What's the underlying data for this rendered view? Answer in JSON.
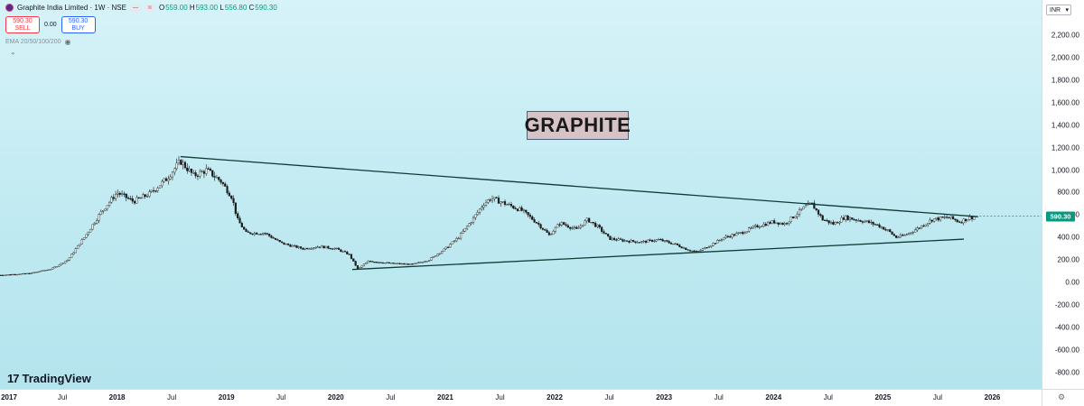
{
  "legend": {
    "title": "Graphite India Limited · 1W · NSE",
    "ohlc": [
      {
        "k": "O",
        "v": "559.00"
      },
      {
        "k": "H",
        "v": "593.00"
      },
      {
        "k": "L",
        "v": "556.80"
      },
      {
        "k": "C",
        "v": "590.30"
      }
    ],
    "pill1": "—",
    "pill2": "≋"
  },
  "trade": {
    "sell_price": "590.30",
    "sell_label": "SELL",
    "spread": "0.00",
    "buy_price": "590.30",
    "buy_label": "BUY"
  },
  "indicator": {
    "label": "EMA 20/50/100/200"
  },
  "currency": "INR",
  "last_price_label": "590.30",
  "annotation": "GRAPHITE",
  "brand": "TradingView",
  "colors": {
    "up": "#089981",
    "down": "#f23645",
    "accent": "#2962ff",
    "trendline": "#0d3b36"
  },
  "chart_data": {
    "type": "candlestick",
    "title": "Graphite India Limited · 1W · NSE",
    "currency": "INR",
    "ylim": [
      -900,
      2450
    ],
    "y_ticks": [
      "2,200.00",
      "2,000.00",
      "1,800.00",
      "1,600.00",
      "1,400.00",
      "1,200.00",
      "1,000.00",
      "800.00",
      "600.00",
      "400.00",
      "200.00",
      "0.00",
      "-200.00",
      "-400.00",
      "-600.00",
      "-800.00"
    ],
    "y_tick_values": [
      2200,
      2000,
      1800,
      1600,
      1400,
      1200,
      1000,
      800,
      600,
      400,
      200,
      0,
      -200,
      -400,
      -600,
      -800
    ],
    "x_ticks": [
      {
        "label": "2017",
        "year": true,
        "t": 2017.0
      },
      {
        "label": "Jul",
        "year": false,
        "t": 2017.5
      },
      {
        "label": "2018",
        "year": true,
        "t": 2018.0
      },
      {
        "label": "Jul",
        "year": false,
        "t": 2018.5
      },
      {
        "label": "2019",
        "year": true,
        "t": 2019.0
      },
      {
        "label": "Jul",
        "year": false,
        "t": 2019.5
      },
      {
        "label": "2020",
        "year": true,
        "t": 2020.0
      },
      {
        "label": "Jul",
        "year": false,
        "t": 2020.5
      },
      {
        "label": "2021",
        "year": true,
        "t": 2021.0
      },
      {
        "label": "Jul",
        "year": false,
        "t": 2021.5
      },
      {
        "label": "2022",
        "year": true,
        "t": 2022.0
      },
      {
        "label": "Jul",
        "year": false,
        "t": 2022.5
      },
      {
        "label": "2023",
        "year": true,
        "t": 2023.0
      },
      {
        "label": "Jul",
        "year": false,
        "t": 2023.5
      },
      {
        "label": "2024",
        "year": true,
        "t": 2024.0
      },
      {
        "label": "Jul",
        "year": false,
        "t": 2024.5
      },
      {
        "label": "2025",
        "year": true,
        "t": 2025.0
      },
      {
        "label": "Jul",
        "year": false,
        "t": 2025.5
      },
      {
        "label": "2026",
        "year": true,
        "t": 2026.0
      }
    ],
    "xlim": [
      2016.93,
      2026.45
    ],
    "price_path": [
      {
        "t": 2016.93,
        "p": 65
      },
      {
        "t": 2017.2,
        "p": 80
      },
      {
        "t": 2017.4,
        "p": 120
      },
      {
        "t": 2017.55,
        "p": 200
      },
      {
        "t": 2017.7,
        "p": 400
      },
      {
        "t": 2017.85,
        "p": 620
      },
      {
        "t": 2018.0,
        "p": 800
      },
      {
        "t": 2018.15,
        "p": 720
      },
      {
        "t": 2018.3,
        "p": 790
      },
      {
        "t": 2018.45,
        "p": 920
      },
      {
        "t": 2018.58,
        "p": 1080
      },
      {
        "t": 2018.7,
        "p": 950
      },
      {
        "t": 2018.82,
        "p": 1000
      },
      {
        "t": 2018.95,
        "p": 900
      },
      {
        "t": 2019.05,
        "p": 760
      },
      {
        "t": 2019.1,
        "p": 560
      },
      {
        "t": 2019.18,
        "p": 440
      },
      {
        "t": 2019.35,
        "p": 440
      },
      {
        "t": 2019.5,
        "p": 350
      },
      {
        "t": 2019.7,
        "p": 300
      },
      {
        "t": 2019.85,
        "p": 320
      },
      {
        "t": 2020.0,
        "p": 300
      },
      {
        "t": 2020.12,
        "p": 250
      },
      {
        "t": 2020.2,
        "p": 120
      },
      {
        "t": 2020.3,
        "p": 190
      },
      {
        "t": 2020.5,
        "p": 170
      },
      {
        "t": 2020.7,
        "p": 160
      },
      {
        "t": 2020.85,
        "p": 200
      },
      {
        "t": 2021.0,
        "p": 300
      },
      {
        "t": 2021.12,
        "p": 400
      },
      {
        "t": 2021.25,
        "p": 560
      },
      {
        "t": 2021.35,
        "p": 700
      },
      {
        "t": 2021.42,
        "p": 750
      },
      {
        "t": 2021.55,
        "p": 700
      },
      {
        "t": 2021.7,
        "p": 640
      },
      {
        "t": 2021.85,
        "p": 520
      },
      {
        "t": 2021.95,
        "p": 420
      },
      {
        "t": 2022.05,
        "p": 530
      },
      {
        "t": 2022.2,
        "p": 470
      },
      {
        "t": 2022.3,
        "p": 560
      },
      {
        "t": 2022.4,
        "p": 490
      },
      {
        "t": 2022.5,
        "p": 390
      },
      {
        "t": 2022.65,
        "p": 370
      },
      {
        "t": 2022.8,
        "p": 360
      },
      {
        "t": 2022.95,
        "p": 380
      },
      {
        "t": 2023.1,
        "p": 340
      },
      {
        "t": 2023.22,
        "p": 290
      },
      {
        "t": 2023.3,
        "p": 270
      },
      {
        "t": 2023.42,
        "p": 330
      },
      {
        "t": 2023.55,
        "p": 400
      },
      {
        "t": 2023.7,
        "p": 440
      },
      {
        "t": 2023.85,
        "p": 500
      },
      {
        "t": 2024.0,
        "p": 540
      },
      {
        "t": 2024.1,
        "p": 520
      },
      {
        "t": 2024.2,
        "p": 600
      },
      {
        "t": 2024.3,
        "p": 680
      },
      {
        "t": 2024.35,
        "p": 700
      },
      {
        "t": 2024.45,
        "p": 560
      },
      {
        "t": 2024.55,
        "p": 520
      },
      {
        "t": 2024.65,
        "p": 580
      },
      {
        "t": 2024.75,
        "p": 560
      },
      {
        "t": 2024.85,
        "p": 540
      },
      {
        "t": 2024.95,
        "p": 510
      },
      {
        "t": 2025.05,
        "p": 460
      },
      {
        "t": 2025.12,
        "p": 400
      },
      {
        "t": 2025.2,
        "p": 420
      },
      {
        "t": 2025.3,
        "p": 470
      },
      {
        "t": 2025.45,
        "p": 560
      },
      {
        "t": 2025.6,
        "p": 580
      },
      {
        "t": 2025.7,
        "p": 540
      },
      {
        "t": 2025.78,
        "p": 570
      },
      {
        "t": 2025.85,
        "p": 590.3
      }
    ],
    "trendlines": [
      {
        "name": "upper",
        "from": {
          "t": 2018.58,
          "p": 1120
        },
        "to": {
          "t": 2025.87,
          "p": 585
        }
      },
      {
        "name": "lower",
        "from": {
          "t": 2020.15,
          "p": 115
        },
        "to": {
          "t": 2025.74,
          "p": 385
        }
      }
    ],
    "last": {
      "open": 559.0,
      "high": 593.0,
      "low": 556.8,
      "close": 590.3
    }
  }
}
